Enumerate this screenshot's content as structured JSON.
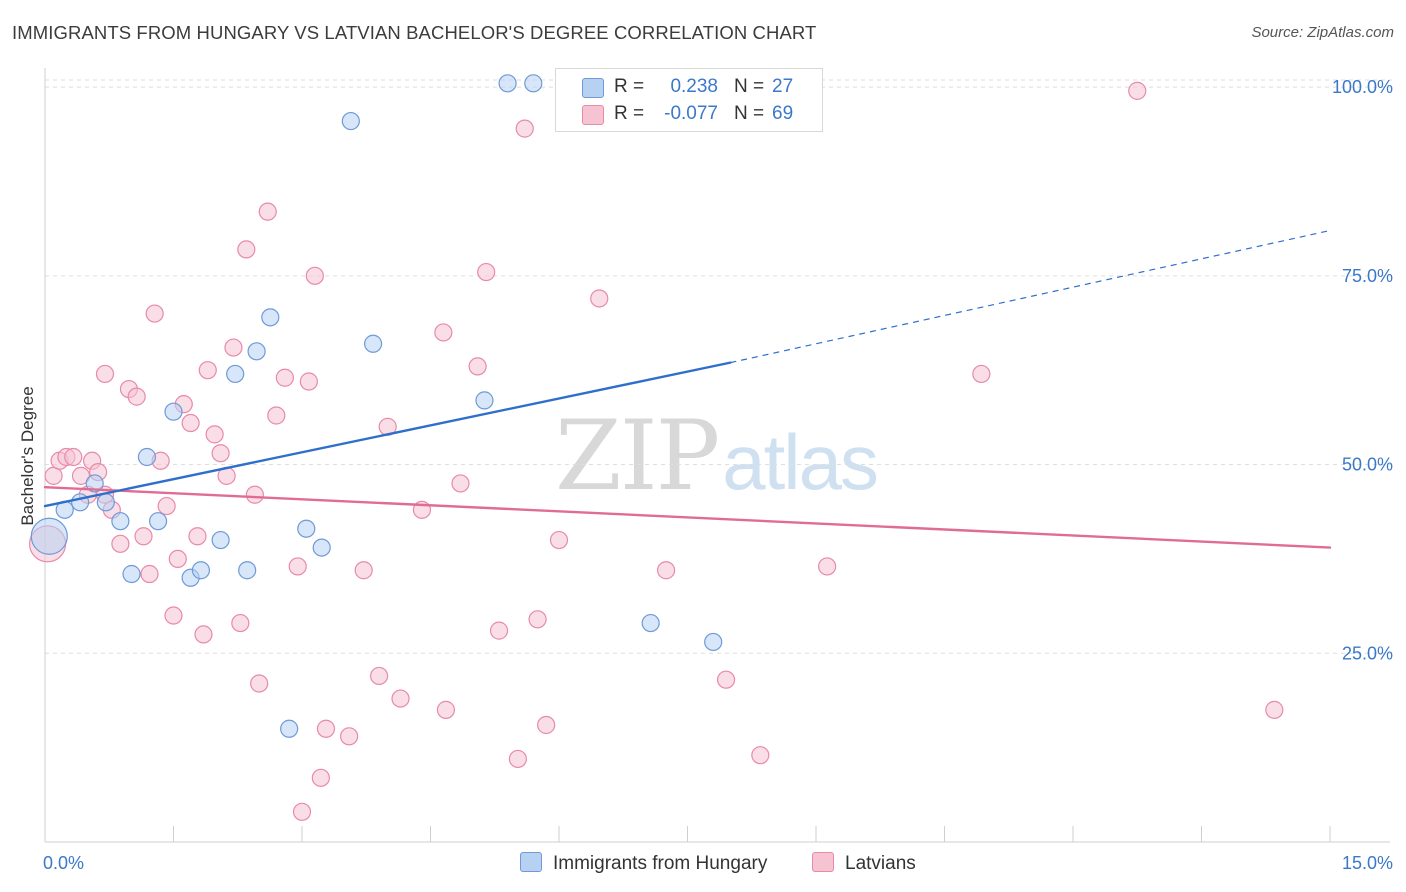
{
  "title": "IMMIGRANTS FROM HUNGARY VS LATVIAN BACHELOR'S DEGREE CORRELATION CHART",
  "source": "Source: ZipAtlas.com",
  "watermark": {
    "zip": "ZIP",
    "atlas": "atlas"
  },
  "legend_top": [
    {
      "r_label": "R =",
      "r_value": "0.238",
      "n_label": "N =",
      "n_value": "27"
    },
    {
      "r_label": "R =",
      "r_value": "-0.077",
      "n_label": "N =",
      "n_value": "69"
    }
  ],
  "legend_bottom": [
    "Immigrants from Hungary",
    "Latvians"
  ],
  "colors": {
    "blue_fill": "#b7d1f2",
    "blue_stroke": "#6f9ad6",
    "blue_line": "#2f6fcc",
    "pink_fill": "#f6c3d3",
    "pink_stroke": "#e88aa8",
    "pink_line": "#e06c96",
    "tick_label": "#3b78c9",
    "grid": "#dedede"
  },
  "chart_data": {
    "type": "scatter",
    "title": "IMMIGRANTS FROM HUNGARY VS LATVIAN BACHELOR'S DEGREE CORRELATION CHART",
    "xlabel": "",
    "ylabel": "Bachelor's Degree",
    "xlim": [
      0,
      15
    ],
    "ylim": [
      0,
      102
    ],
    "x_tick_labels": [
      "0.0%",
      "15.0%"
    ],
    "y_ticks": [
      25,
      50,
      75,
      100
    ],
    "y_tick_labels": [
      "25.0%",
      "50.0%",
      "75.0%",
      "100.0%"
    ],
    "grid": true,
    "legend_position": "bottom",
    "series": [
      {
        "name": "Immigrants from Hungary",
        "r": 0.238,
        "n": 27,
        "trend": {
          "x0": 0,
          "y0": 44.5,
          "x1": 8.0,
          "y1": 63.5,
          "dashed_to_x": 15,
          "dashed_to_y": 81
        },
        "points": [
          {
            "x": 0.05,
            "y": 40.5,
            "big": true
          },
          {
            "x": 0.23,
            "y": 44.0
          },
          {
            "x": 0.41,
            "y": 45.0
          },
          {
            "x": 0.58,
            "y": 47.5
          },
          {
            "x": 0.71,
            "y": 45.0
          },
          {
            "x": 0.88,
            "y": 42.5
          },
          {
            "x": 1.01,
            "y": 35.5
          },
          {
            "x": 1.19,
            "y": 51.0
          },
          {
            "x": 1.32,
            "y": 42.5
          },
          {
            "x": 1.5,
            "y": 57.0
          },
          {
            "x": 1.7,
            "y": 35.0
          },
          {
            "x": 1.82,
            "y": 36.0
          },
          {
            "x": 2.05,
            "y": 40.0
          },
          {
            "x": 2.22,
            "y": 62.0
          },
          {
            "x": 2.36,
            "y": 36.0
          },
          {
            "x": 2.47,
            "y": 65.0
          },
          {
            "x": 2.63,
            "y": 69.5
          },
          {
            "x": 2.85,
            "y": 15.0
          },
          {
            "x": 3.05,
            "y": 41.5
          },
          {
            "x": 3.23,
            "y": 39.0
          },
          {
            "x": 3.57,
            "y": 95.5
          },
          {
            "x": 3.83,
            "y": 66.0
          },
          {
            "x": 5.13,
            "y": 58.5
          },
          {
            "x": 5.4,
            "y": 100.5
          },
          {
            "x": 5.7,
            "y": 100.5
          },
          {
            "x": 7.07,
            "y": 29.0
          },
          {
            "x": 7.8,
            "y": 26.5
          }
        ]
      },
      {
        "name": "Latvians",
        "r": -0.077,
        "n": 69,
        "trend": {
          "x0": 0,
          "y0": 47.0,
          "x1": 15,
          "y1": 39.0
        },
        "points": [
          {
            "x": 0.03,
            "y": 39.5,
            "big": true
          },
          {
            "x": 0.1,
            "y": 48.5
          },
          {
            "x": 0.17,
            "y": 50.5
          },
          {
            "x": 0.25,
            "y": 51.0
          },
          {
            "x": 0.33,
            "y": 51.0
          },
          {
            "x": 0.42,
            "y": 48.5
          },
          {
            "x": 0.5,
            "y": 46.0
          },
          {
            "x": 0.55,
            "y": 50.5
          },
          {
            "x": 0.62,
            "y": 49.0
          },
          {
            "x": 0.7,
            "y": 46.0
          },
          {
            "x": 0.78,
            "y": 44.0
          },
          {
            "x": 0.88,
            "y": 39.5
          },
          {
            "x": 0.7,
            "y": 62.0
          },
          {
            "x": 0.98,
            "y": 60.0
          },
          {
            "x": 1.07,
            "y": 59.0
          },
          {
            "x": 1.15,
            "y": 40.5
          },
          {
            "x": 1.22,
            "y": 35.5
          },
          {
            "x": 1.28,
            "y": 70.0
          },
          {
            "x": 1.35,
            "y": 50.5
          },
          {
            "x": 1.42,
            "y": 44.5
          },
          {
            "x": 1.5,
            "y": 30.0
          },
          {
            "x": 1.55,
            "y": 37.5
          },
          {
            "x": 1.62,
            "y": 58.0
          },
          {
            "x": 1.7,
            "y": 55.5
          },
          {
            "x": 1.78,
            "y": 40.5
          },
          {
            "x": 1.85,
            "y": 27.5
          },
          {
            "x": 1.9,
            "y": 62.5
          },
          {
            "x": 1.98,
            "y": 54.0
          },
          {
            "x": 2.05,
            "y": 51.5
          },
          {
            "x": 2.12,
            "y": 48.5
          },
          {
            "x": 2.2,
            "y": 65.5
          },
          {
            "x": 2.28,
            "y": 29.0
          },
          {
            "x": 2.35,
            "y": 78.5
          },
          {
            "x": 2.45,
            "y": 46.0
          },
          {
            "x": 2.5,
            "y": 21.0
          },
          {
            "x": 2.6,
            "y": 83.5
          },
          {
            "x": 2.7,
            "y": 56.5
          },
          {
            "x": 2.8,
            "y": 61.5
          },
          {
            "x": 2.95,
            "y": 36.5
          },
          {
            "x": 3.0,
            "y": 4.0
          },
          {
            "x": 3.08,
            "y": 61.0
          },
          {
            "x": 3.15,
            "y": 75.0
          },
          {
            "x": 3.22,
            "y": 8.5
          },
          {
            "x": 3.28,
            "y": 15.0
          },
          {
            "x": 3.55,
            "y": 14.0
          },
          {
            "x": 3.72,
            "y": 36.0
          },
          {
            "x": 4.0,
            "y": 55.0
          },
          {
            "x": 3.9,
            "y": 22.0
          },
          {
            "x": 4.15,
            "y": 19.0
          },
          {
            "x": 4.4,
            "y": 44.0
          },
          {
            "x": 4.65,
            "y": 67.5
          },
          {
            "x": 4.68,
            "y": 17.5
          },
          {
            "x": 4.85,
            "y": 47.5
          },
          {
            "x": 5.05,
            "y": 63.0
          },
          {
            "x": 5.15,
            "y": 75.5
          },
          {
            "x": 5.3,
            "y": 28.0
          },
          {
            "x": 5.52,
            "y": 11.0
          },
          {
            "x": 5.6,
            "y": 94.5
          },
          {
            "x": 5.75,
            "y": 29.5
          },
          {
            "x": 5.85,
            "y": 15.5
          },
          {
            "x": 6.0,
            "y": 40.0
          },
          {
            "x": 6.47,
            "y": 72.0
          },
          {
            "x": 7.25,
            "y": 36.0
          },
          {
            "x": 7.95,
            "y": 21.5
          },
          {
            "x": 8.35,
            "y": 11.5
          },
          {
            "x": 9.13,
            "y": 36.5
          },
          {
            "x": 10.93,
            "y": 62.0
          },
          {
            "x": 12.75,
            "y": 99.5
          },
          {
            "x": 14.35,
            "y": 17.5
          }
        ]
      }
    ]
  }
}
